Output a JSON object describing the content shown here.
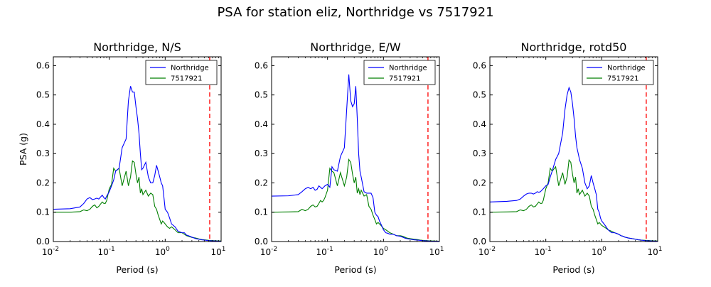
{
  "figure": {
    "title": "PSA for station eliz, Northridge vs 7517921"
  },
  "colors": {
    "northridge": "#0000ff",
    "sim": "#007f00",
    "cutoff": "#ff0000",
    "axes": "#000000"
  },
  "chart_data": [
    {
      "type": "line",
      "title": "Northridge, N/S",
      "xlabel": "Period (s)",
      "ylabel": "PSA (g)",
      "xscale": "log",
      "xlim": [
        0.01,
        10
      ],
      "ylim": [
        0,
        0.63
      ],
      "yticks": [
        0.0,
        0.1,
        0.2,
        0.3,
        0.4,
        0.5,
        0.6
      ],
      "xtick_labels": [
        "10",
        "10",
        "10",
        "10"
      ],
      "xtick_exponents": [
        "-2",
        "-1",
        "0",
        "1"
      ],
      "legend": "top-right",
      "cutoff_period": 6.25,
      "series": [
        {
          "name": "Northridge",
          "x": [
            0.01,
            0.02,
            0.03,
            0.035,
            0.04,
            0.045,
            0.05,
            0.055,
            0.06,
            0.065,
            0.07,
            0.075,
            0.08,
            0.085,
            0.09,
            0.1,
            0.11,
            0.12,
            0.13,
            0.15,
            0.17,
            0.2,
            0.22,
            0.24,
            0.26,
            0.28,
            0.3,
            0.32,
            0.34,
            0.36,
            0.38,
            0.4,
            0.45,
            0.5,
            0.55,
            0.6,
            0.65,
            0.7,
            0.75,
            0.8,
            0.85,
            0.9,
            0.95,
            1.0,
            1.1,
            1.2,
            1.3,
            1.5,
            1.7,
            2.0,
            2.2,
            2.4,
            2.6,
            3.0,
            3.5,
            4.0,
            4.5,
            5.0,
            6.0,
            7.5,
            10.0
          ],
          "y": [
            0.11,
            0.112,
            0.118,
            0.13,
            0.145,
            0.15,
            0.143,
            0.145,
            0.148,
            0.145,
            0.152,
            0.158,
            0.15,
            0.145,
            0.155,
            0.17,
            0.19,
            0.21,
            0.24,
            0.25,
            0.32,
            0.35,
            0.48,
            0.53,
            0.51,
            0.51,
            0.46,
            0.42,
            0.37,
            0.3,
            0.245,
            0.25,
            0.27,
            0.22,
            0.2,
            0.2,
            0.225,
            0.26,
            0.24,
            0.22,
            0.2,
            0.19,
            0.15,
            0.11,
            0.1,
            0.08,
            0.06,
            0.05,
            0.035,
            0.03,
            0.03,
            0.022,
            0.02,
            0.015,
            0.01,
            0.008,
            0.006,
            0.005,
            0.003,
            0.002,
            0.001
          ]
        },
        {
          "name": "7517921",
          "x": [
            0.01,
            0.02,
            0.03,
            0.035,
            0.04,
            0.045,
            0.05,
            0.055,
            0.06,
            0.065,
            0.07,
            0.075,
            0.08,
            0.085,
            0.09,
            0.1,
            0.11,
            0.12,
            0.13,
            0.15,
            0.17,
            0.2,
            0.22,
            0.24,
            0.26,
            0.28,
            0.3,
            0.32,
            0.34,
            0.36,
            0.38,
            0.4,
            0.45,
            0.5,
            0.55,
            0.6,
            0.65,
            0.7,
            0.75,
            0.8,
            0.85,
            0.9,
            0.95,
            1.0,
            1.1,
            1.2,
            1.3,
            1.5,
            1.7,
            2.0,
            2.2,
            2.4,
            2.6,
            3.0,
            3.5,
            4.0,
            4.5,
            5.0,
            6.0,
            7.5,
            10.0
          ],
          "y": [
            0.1,
            0.1,
            0.102,
            0.108,
            0.105,
            0.11,
            0.12,
            0.125,
            0.115,
            0.12,
            0.128,
            0.135,
            0.13,
            0.13,
            0.14,
            0.18,
            0.195,
            0.25,
            0.24,
            0.25,
            0.19,
            0.24,
            0.19,
            0.22,
            0.275,
            0.27,
            0.23,
            0.2,
            0.22,
            0.165,
            0.18,
            0.16,
            0.175,
            0.155,
            0.165,
            0.16,
            0.12,
            0.11,
            0.09,
            0.075,
            0.06,
            0.07,
            0.065,
            0.06,
            0.05,
            0.045,
            0.05,
            0.04,
            0.03,
            0.03,
            0.025,
            0.02,
            0.018,
            0.014,
            0.012,
            0.009,
            0.007,
            0.006,
            0.004,
            0.003,
            0.002
          ]
        }
      ]
    },
    {
      "type": "line",
      "title": "Northridge, E/W",
      "xlabel": "Period (s)",
      "ylabel": "",
      "xscale": "log",
      "xlim": [
        0.01,
        10
      ],
      "ylim": [
        0,
        0.63
      ],
      "yticks": [
        0.0,
        0.1,
        0.2,
        0.3,
        0.4,
        0.5,
        0.6
      ],
      "xtick_labels": [
        "10",
        "10",
        "10",
        "10"
      ],
      "xtick_exponents": [
        "-2",
        "-1",
        "0",
        "1"
      ],
      "legend": "top-right",
      "cutoff_period": 6.25,
      "series": [
        {
          "name": "Northridge",
          "x": [
            0.01,
            0.02,
            0.03,
            0.035,
            0.04,
            0.045,
            0.05,
            0.055,
            0.06,
            0.065,
            0.07,
            0.075,
            0.08,
            0.085,
            0.09,
            0.1,
            0.11,
            0.12,
            0.13,
            0.15,
            0.17,
            0.2,
            0.22,
            0.24,
            0.26,
            0.28,
            0.3,
            0.32,
            0.34,
            0.36,
            0.38,
            0.4,
            0.45,
            0.5,
            0.55,
            0.6,
            0.65,
            0.7,
            0.75,
            0.8,
            0.85,
            0.9,
            0.95,
            1.0,
            1.1,
            1.2,
            1.3,
            1.5,
            1.7,
            2.0,
            2.2,
            2.4,
            2.6,
            3.0,
            3.5,
            4.0,
            4.5,
            5.0,
            6.0,
            7.5,
            10.0
          ],
          "y": [
            0.155,
            0.156,
            0.16,
            0.17,
            0.18,
            0.185,
            0.18,
            0.185,
            0.175,
            0.178,
            0.19,
            0.185,
            0.18,
            0.185,
            0.19,
            0.195,
            0.185,
            0.255,
            0.245,
            0.24,
            0.29,
            0.32,
            0.45,
            0.57,
            0.48,
            0.46,
            0.47,
            0.53,
            0.42,
            0.3,
            0.24,
            0.22,
            0.17,
            0.165,
            0.165,
            0.165,
            0.15,
            0.1,
            0.09,
            0.085,
            0.07,
            0.06,
            0.05,
            0.04,
            0.03,
            0.028,
            0.025,
            0.025,
            0.02,
            0.018,
            0.015,
            0.012,
            0.01,
            0.008,
            0.006,
            0.005,
            0.004,
            0.003,
            0.002,
            0.001,
            0.001
          ]
        },
        {
          "name": "7517921",
          "x": [
            0.01,
            0.02,
            0.03,
            0.035,
            0.04,
            0.045,
            0.05,
            0.055,
            0.06,
            0.065,
            0.07,
            0.075,
            0.08,
            0.085,
            0.09,
            0.1,
            0.11,
            0.12,
            0.13,
            0.15,
            0.17,
            0.2,
            0.22,
            0.24,
            0.26,
            0.28,
            0.3,
            0.32,
            0.34,
            0.36,
            0.38,
            0.4,
            0.45,
            0.5,
            0.55,
            0.6,
            0.65,
            0.7,
            0.75,
            0.8,
            0.85,
            0.9,
            0.95,
            1.0,
            1.1,
            1.2,
            1.3,
            1.5,
            1.7,
            2.0,
            2.2,
            2.4,
            2.6,
            3.0,
            3.5,
            4.0,
            4.5,
            5.0,
            6.0,
            7.5,
            10.0
          ],
          "y": [
            0.1,
            0.101,
            0.102,
            0.11,
            0.105,
            0.11,
            0.12,
            0.125,
            0.118,
            0.12,
            0.13,
            0.14,
            0.135,
            0.14,
            0.15,
            0.175,
            0.25,
            0.24,
            0.235,
            0.19,
            0.235,
            0.19,
            0.22,
            0.28,
            0.27,
            0.23,
            0.2,
            0.22,
            0.165,
            0.18,
            0.16,
            0.175,
            0.155,
            0.16,
            0.12,
            0.11,
            0.09,
            0.075,
            0.06,
            0.065,
            0.06,
            0.055,
            0.05,
            0.045,
            0.04,
            0.035,
            0.03,
            0.025,
            0.02,
            0.02,
            0.018,
            0.015,
            0.012,
            0.01,
            0.008,
            0.007,
            0.005,
            0.004,
            0.003,
            0.002,
            0.001
          ]
        }
      ]
    },
    {
      "type": "line",
      "title": "Northridge, rotd50",
      "xlabel": "Period (s)",
      "ylabel": "",
      "xscale": "log",
      "xlim": [
        0.01,
        10
      ],
      "ylim": [
        0,
        0.63
      ],
      "yticks": [
        0.0,
        0.1,
        0.2,
        0.3,
        0.4,
        0.5,
        0.6
      ],
      "xtick_labels": [
        "10",
        "10",
        "10",
        "10"
      ],
      "xtick_exponents": [
        "-2",
        "-1",
        "0",
        "1"
      ],
      "legend": "top-right",
      "cutoff_period": 6.25,
      "series": [
        {
          "name": "Northridge",
          "x": [
            0.01,
            0.02,
            0.03,
            0.035,
            0.04,
            0.045,
            0.05,
            0.055,
            0.06,
            0.065,
            0.07,
            0.075,
            0.08,
            0.085,
            0.09,
            0.1,
            0.11,
            0.12,
            0.13,
            0.15,
            0.17,
            0.2,
            0.22,
            0.24,
            0.26,
            0.28,
            0.3,
            0.32,
            0.34,
            0.36,
            0.38,
            0.4,
            0.45,
            0.5,
            0.55,
            0.6,
            0.65,
            0.7,
            0.75,
            0.8,
            0.85,
            0.9,
            0.95,
            1.0,
            1.1,
            1.2,
            1.3,
            1.5,
            1.7,
            2.0,
            2.2,
            2.4,
            2.6,
            3.0,
            3.5,
            4.0,
            4.5,
            5.0,
            6.0,
            7.5,
            10.0
          ],
          "y": [
            0.135,
            0.137,
            0.14,
            0.145,
            0.155,
            0.162,
            0.165,
            0.165,
            0.162,
            0.165,
            0.17,
            0.168,
            0.17,
            0.175,
            0.18,
            0.19,
            0.195,
            0.22,
            0.24,
            0.28,
            0.3,
            0.37,
            0.45,
            0.5,
            0.525,
            0.51,
            0.47,
            0.42,
            0.36,
            0.32,
            0.3,
            0.28,
            0.25,
            0.2,
            0.18,
            0.19,
            0.225,
            0.2,
            0.18,
            0.16,
            0.11,
            0.1,
            0.08,
            0.07,
            0.06,
            0.05,
            0.04,
            0.03,
            0.03,
            0.025,
            0.02,
            0.018,
            0.015,
            0.012,
            0.01,
            0.008,
            0.006,
            0.005,
            0.003,
            0.002,
            0.001
          ]
        },
        {
          "name": "7517921",
          "x": [
            0.01,
            0.02,
            0.03,
            0.035,
            0.04,
            0.045,
            0.05,
            0.055,
            0.06,
            0.065,
            0.07,
            0.075,
            0.08,
            0.085,
            0.09,
            0.1,
            0.11,
            0.12,
            0.13,
            0.15,
            0.17,
            0.2,
            0.22,
            0.24,
            0.26,
            0.28,
            0.3,
            0.32,
            0.34,
            0.36,
            0.38,
            0.4,
            0.45,
            0.5,
            0.55,
            0.6,
            0.65,
            0.7,
            0.75,
            0.8,
            0.85,
            0.9,
            0.95,
            1.0,
            1.1,
            1.2,
            1.3,
            1.5,
            1.7,
            2.0,
            2.2,
            2.4,
            2.6,
            3.0,
            3.5,
            4.0,
            4.5,
            5.0,
            6.0,
            7.5,
            10.0
          ],
          "y": [
            0.1,
            0.101,
            0.102,
            0.108,
            0.105,
            0.11,
            0.12,
            0.125,
            0.118,
            0.12,
            0.128,
            0.135,
            0.13,
            0.13,
            0.14,
            0.18,
            0.2,
            0.25,
            0.24,
            0.255,
            0.19,
            0.235,
            0.195,
            0.22,
            0.278,
            0.27,
            0.23,
            0.2,
            0.22,
            0.165,
            0.18,
            0.16,
            0.175,
            0.155,
            0.165,
            0.155,
            0.12,
            0.11,
            0.09,
            0.075,
            0.06,
            0.065,
            0.06,
            0.055,
            0.05,
            0.045,
            0.04,
            0.035,
            0.03,
            0.025,
            0.02,
            0.018,
            0.015,
            0.012,
            0.01,
            0.008,
            0.006,
            0.005,
            0.004,
            0.003,
            0.002
          ]
        }
      ]
    }
  ]
}
